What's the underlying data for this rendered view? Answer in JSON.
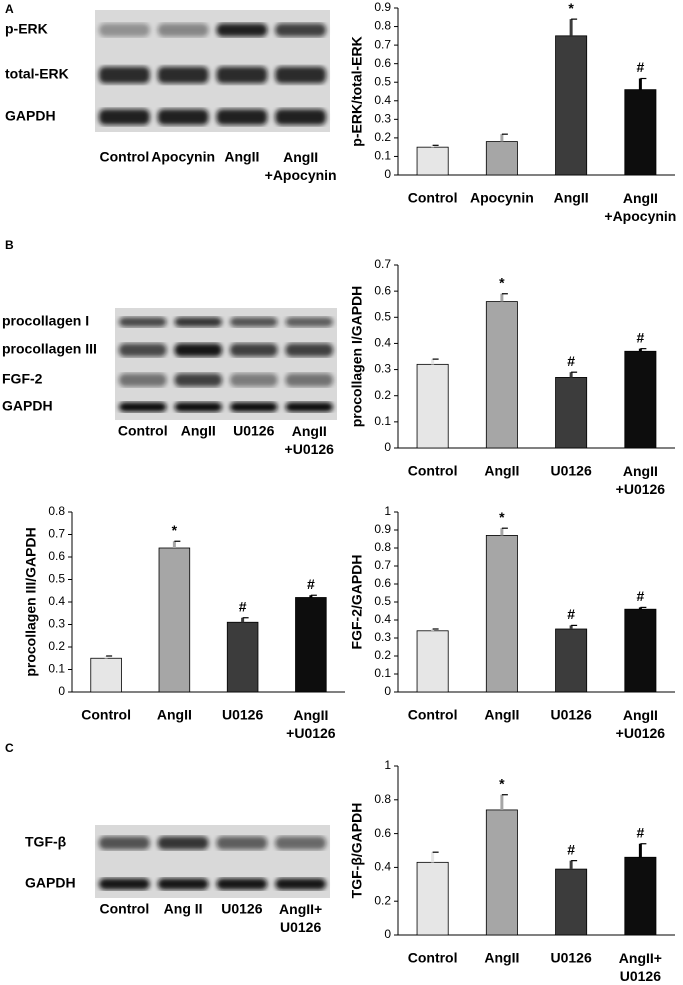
{
  "chart_data": [
    {
      "type": "bar",
      "ylabel": "p-ERK/total-ERK",
      "categories": [
        "Control",
        "Apocynin",
        "AngII",
        "AngII\n+Apocynin"
      ],
      "values": [
        0.15,
        0.18,
        0.75,
        0.46
      ],
      "errors": [
        0.01,
        0.04,
        0.09,
        0.06
      ],
      "annotations": [
        null,
        null,
        "*",
        "#"
      ],
      "colors": [
        "#e6e6e6",
        "#a6a6a6",
        "#3c3c3c",
        "#0d0d0d"
      ],
      "ylim": [
        0,
        0.9
      ],
      "yticks": [
        0,
        0.1,
        0.2,
        0.3,
        0.4,
        0.5,
        0.6,
        0.7,
        0.8,
        0.9
      ]
    },
    {
      "type": "bar",
      "ylabel": "procollagen I/GAPDH",
      "categories": [
        "Control",
        "AngII",
        "U0126",
        "AngII\n+U0126"
      ],
      "values": [
        0.32,
        0.56,
        0.27,
        0.37
      ],
      "errors": [
        0.02,
        0.03,
        0.02,
        0.01
      ],
      "annotations": [
        null,
        "*",
        "#",
        "#"
      ],
      "colors": [
        "#e6e6e6",
        "#a6a6a6",
        "#3c3c3c",
        "#0d0d0d"
      ],
      "ylim": [
        0,
        0.7
      ],
      "yticks": [
        0,
        0.1,
        0.2,
        0.3,
        0.4,
        0.5,
        0.6,
        0.7
      ]
    },
    {
      "type": "bar",
      "ylabel": "procollagen III/GAPDH",
      "categories": [
        "Control",
        "AngII",
        "U0126",
        "AngII\n+U0126"
      ],
      "values": [
        0.15,
        0.64,
        0.31,
        0.42
      ],
      "errors": [
        0.01,
        0.03,
        0.02,
        0.01
      ],
      "annotations": [
        null,
        "*",
        "#",
        "#"
      ],
      "colors": [
        "#e6e6e6",
        "#a6a6a6",
        "#3c3c3c",
        "#0d0d0d"
      ],
      "ylim": [
        0,
        0.8
      ],
      "yticks": [
        0,
        0.1,
        0.2,
        0.3,
        0.4,
        0.5,
        0.6,
        0.7,
        0.8
      ]
    },
    {
      "type": "bar",
      "ylabel": "FGF-2/GAPDH",
      "categories": [
        "Control",
        "AngII",
        "U0126",
        "AngII\n+U0126"
      ],
      "values": [
        0.34,
        0.87,
        0.35,
        0.46
      ],
      "errors": [
        0.01,
        0.04,
        0.02,
        0.01
      ],
      "annotations": [
        null,
        "*",
        "#",
        "#"
      ],
      "colors": [
        "#e6e6e6",
        "#a6a6a6",
        "#3c3c3c",
        "#0d0d0d"
      ],
      "ylim": [
        0,
        1
      ],
      "yticks": [
        0,
        0.1,
        0.2,
        0.3,
        0.4,
        0.5,
        0.6,
        0.7,
        0.8,
        0.9,
        1
      ]
    },
    {
      "type": "bar",
      "ylabel": "TGF-β/GAPDH",
      "categories": [
        "Control",
        "AngII",
        "U0126",
        "AngII+\nU0126"
      ],
      "values": [
        0.43,
        0.74,
        0.39,
        0.46
      ],
      "errors": [
        0.06,
        0.09,
        0.05,
        0.08
      ],
      "annotations": [
        null,
        "*",
        "#",
        "#"
      ],
      "colors": [
        "#e6e6e6",
        "#a6a6a6",
        "#3c3c3c",
        "#0d0d0d"
      ],
      "ylim": [
        0,
        1
      ],
      "yticks": [
        0,
        0.2,
        0.4,
        0.6,
        0.8,
        1
      ]
    }
  ],
  "blots": [
    {
      "panel": "A",
      "rows": [
        "p-ERK",
        "total-ERK",
        "GAPDH"
      ],
      "lanes": [
        "Control",
        "Apocynin",
        "AngII",
        "AngII\n+Apocynin"
      ]
    },
    {
      "panel": "B",
      "rows": [
        "procollagen I",
        "procollagen III",
        "FGF-2",
        "GAPDH"
      ],
      "lanes": [
        "Control",
        "AngII",
        "U0126",
        "AngII\n+U0126"
      ]
    },
    {
      "panel": "C",
      "rows": [
        "TGF-β",
        "GAPDH"
      ],
      "lanes": [
        "Control",
        "Ang II",
        "U0126",
        "AngII+\nU0126"
      ]
    }
  ]
}
